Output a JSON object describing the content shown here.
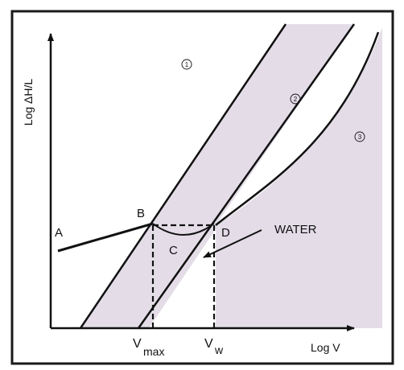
{
  "colors": {
    "shading": "#e4dde8",
    "ink": "#111111",
    "frame": "#1a1a1a",
    "background": "#ffffff"
  },
  "axes": {
    "y_label": "Log ΔH/L",
    "x_label": "Log V"
  },
  "regions": {
    "region_1": "1",
    "region_2": "2",
    "region_3": "3"
  },
  "points": {
    "a": "A",
    "b": "B",
    "c": "C",
    "d": "D"
  },
  "annotation": {
    "water": "WATER"
  },
  "ticks": {
    "v_max_main": "V",
    "v_max_sub": "max",
    "v_w_main": "V",
    "v_w_sub": "w"
  }
}
